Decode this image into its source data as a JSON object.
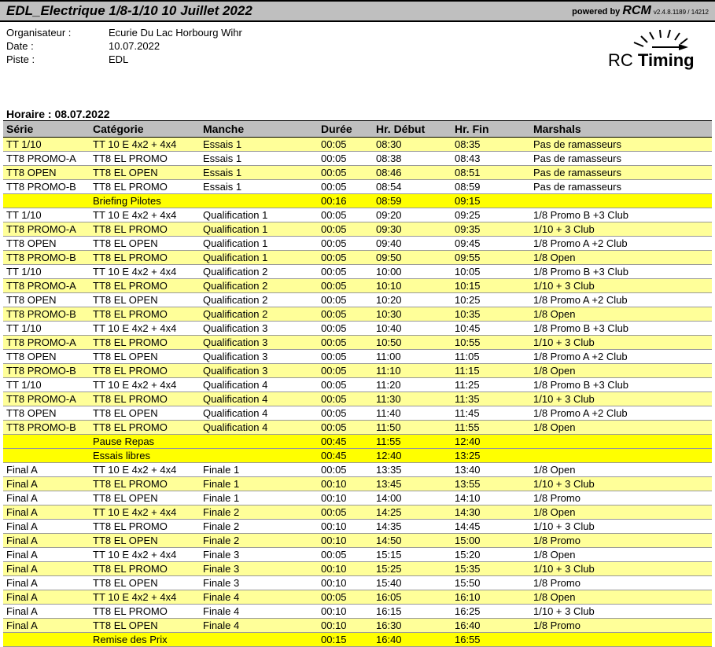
{
  "colors": {
    "header_bg": "#bfbfbf",
    "thead_bg": "#bfbfbf",
    "yellow_light": "#ffff99",
    "yellow_bright": "#ffff00",
    "white": "#ffffff",
    "text": "#000000"
  },
  "header": {
    "title": "EDL_Electrique 1/8-1/10 10 Juillet 2022",
    "powered_prefix": "powered by",
    "powered_brand": "RCM",
    "version": "v2.4.8.1189 / 14212"
  },
  "info": {
    "organiser_label": "Organisateur :",
    "organiser_value": "Ecurie Du Lac Horbourg Wihr",
    "date_label": "Date :",
    "date_value": "10.07.2022",
    "track_label": "Piste :",
    "track_value": "EDL"
  },
  "logo": {
    "text_rc": "RC",
    "text_timing": "Timing"
  },
  "schedule": {
    "heading": "Horaire : 08.07.2022",
    "columns": {
      "serie": "Série",
      "categorie": "Catégorie",
      "manche": "Manche",
      "duree": "Durée",
      "debut": "Hr. Début",
      "fin": "Hr. Fin",
      "marshals": "Marshals"
    },
    "rows": [
      {
        "style": "light",
        "serie": "TT 1/10",
        "cat": "TT 10 E 4x2 + 4x4",
        "manche": "Essais 1",
        "duree": "00:05",
        "debut": "08:30",
        "fin": "08:35",
        "marshal": "Pas de ramasseurs"
      },
      {
        "style": "white",
        "serie": "TT8 PROMO-A",
        "cat": "TT8 EL PROMO",
        "manche": "Essais 1",
        "duree": "00:05",
        "debut": "08:38",
        "fin": "08:43",
        "marshal": "Pas de ramasseurs"
      },
      {
        "style": "light",
        "serie": "TT8 OPEN",
        "cat": "TT8 EL OPEN",
        "manche": "Essais 1",
        "duree": "00:05",
        "debut": "08:46",
        "fin": "08:51",
        "marshal": "Pas de ramasseurs"
      },
      {
        "style": "white",
        "serie": "TT8 PROMO-B",
        "cat": "TT8 EL PROMO",
        "manche": "Essais 1",
        "duree": "00:05",
        "debut": "08:54",
        "fin": "08:59",
        "marshal": "Pas de ramasseurs"
      },
      {
        "style": "bright",
        "serie": "",
        "cat": "Briefing Pilotes",
        "manche": "",
        "duree": "00:16",
        "debut": "08:59",
        "fin": "09:15",
        "marshal": ""
      },
      {
        "style": "white",
        "serie": "TT 1/10",
        "cat": "TT 10 E 4x2 + 4x4",
        "manche": "Qualification 1",
        "duree": "00:05",
        "debut": "09:20",
        "fin": "09:25",
        "marshal": "1/8 Promo B +3 Club"
      },
      {
        "style": "light",
        "serie": "TT8 PROMO-A",
        "cat": "TT8 EL PROMO",
        "manche": "Qualification 1",
        "duree": "00:05",
        "debut": "09:30",
        "fin": "09:35",
        "marshal": "1/10 + 3 Club"
      },
      {
        "style": "white",
        "serie": "TT8 OPEN",
        "cat": "TT8 EL OPEN",
        "manche": "Qualification 1",
        "duree": "00:05",
        "debut": "09:40",
        "fin": "09:45",
        "marshal": "1/8 Promo A +2 Club"
      },
      {
        "style": "light",
        "serie": "TT8 PROMO-B",
        "cat": "TT8 EL PROMO",
        "manche": "Qualification 1",
        "duree": "00:05",
        "debut": "09:50",
        "fin": "09:55",
        "marshal": "1/8 Open"
      },
      {
        "style": "white",
        "serie": "TT 1/10",
        "cat": "TT 10 E 4x2 + 4x4",
        "manche": "Qualification 2",
        "duree": "00:05",
        "debut": "10:00",
        "fin": "10:05",
        "marshal": "1/8 Promo B +3 Club"
      },
      {
        "style": "light",
        "serie": "TT8 PROMO-A",
        "cat": "TT8 EL PROMO",
        "manche": "Qualification 2",
        "duree": "00:05",
        "debut": "10:10",
        "fin": "10:15",
        "marshal": "1/10 + 3 Club"
      },
      {
        "style": "white",
        "serie": "TT8 OPEN",
        "cat": "TT8 EL OPEN",
        "manche": "Qualification 2",
        "duree": "00:05",
        "debut": "10:20",
        "fin": "10:25",
        "marshal": "1/8 Promo A +2 Club"
      },
      {
        "style": "light",
        "serie": "TT8 PROMO-B",
        "cat": "TT8 EL PROMO",
        "manche": "Qualification 2",
        "duree": "00:05",
        "debut": "10:30",
        "fin": "10:35",
        "marshal": "1/8 Open"
      },
      {
        "style": "white",
        "serie": "TT 1/10",
        "cat": "TT 10 E 4x2 + 4x4",
        "manche": "Qualification 3",
        "duree": "00:05",
        "debut": "10:40",
        "fin": "10:45",
        "marshal": "1/8 Promo B +3 Club"
      },
      {
        "style": "light",
        "serie": "TT8 PROMO-A",
        "cat": "TT8 EL PROMO",
        "manche": "Qualification 3",
        "duree": "00:05",
        "debut": "10:50",
        "fin": "10:55",
        "marshal": "1/10 + 3 Club"
      },
      {
        "style": "white",
        "serie": "TT8 OPEN",
        "cat": "TT8 EL OPEN",
        "manche": "Qualification 3",
        "duree": "00:05",
        "debut": "11:00",
        "fin": "11:05",
        "marshal": "1/8 Promo A +2 Club"
      },
      {
        "style": "light",
        "serie": "TT8 PROMO-B",
        "cat": "TT8 EL PROMO",
        "manche": "Qualification 3",
        "duree": "00:05",
        "debut": "11:10",
        "fin": "11:15",
        "marshal": "1/8 Open"
      },
      {
        "style": "white",
        "serie": "TT 1/10",
        "cat": "TT 10 E 4x2 + 4x4",
        "manche": "Qualification 4",
        "duree": "00:05",
        "debut": "11:20",
        "fin": "11:25",
        "marshal": "1/8 Promo B +3 Club"
      },
      {
        "style": "light",
        "serie": "TT8 PROMO-A",
        "cat": "TT8 EL PROMO",
        "manche": "Qualification 4",
        "duree": "00:05",
        "debut": "11:30",
        "fin": "11:35",
        "marshal": "1/10 + 3 Club"
      },
      {
        "style": "white",
        "serie": "TT8 OPEN",
        "cat": "TT8 EL OPEN",
        "manche": "Qualification 4",
        "duree": "00:05",
        "debut": "11:40",
        "fin": "11:45",
        "marshal": "1/8 Promo A +2 Club"
      },
      {
        "style": "light",
        "serie": "TT8 PROMO-B",
        "cat": "TT8 EL PROMO",
        "manche": "Qualification 4",
        "duree": "00:05",
        "debut": "11:50",
        "fin": "11:55",
        "marshal": "1/8 Open"
      },
      {
        "style": "bright",
        "serie": "",
        "cat": "Pause Repas",
        "manche": "",
        "duree": "00:45",
        "debut": "11:55",
        "fin": "12:40",
        "marshal": ""
      },
      {
        "style": "bright",
        "serie": "",
        "cat": "Essais libres",
        "manche": "",
        "duree": "00:45",
        "debut": "12:40",
        "fin": "13:25",
        "marshal": ""
      },
      {
        "style": "white",
        "serie": "Final A",
        "cat": "TT 10 E 4x2 + 4x4",
        "manche": "Finale 1",
        "duree": "00:05",
        "debut": "13:35",
        "fin": "13:40",
        "marshal": "1/8 Open"
      },
      {
        "style": "light",
        "serie": "Final A",
        "cat": "TT8 EL PROMO",
        "manche": "Finale 1",
        "duree": "00:10",
        "debut": "13:45",
        "fin": "13:55",
        "marshal": "1/10 + 3 Club"
      },
      {
        "style": "white",
        "serie": "Final A",
        "cat": "TT8 EL OPEN",
        "manche": "Finale 1",
        "duree": "00:10",
        "debut": "14:00",
        "fin": "14:10",
        "marshal": "1/8 Promo"
      },
      {
        "style": "light",
        "serie": "Final A",
        "cat": "TT 10 E 4x2 + 4x4",
        "manche": "Finale 2",
        "duree": "00:05",
        "debut": "14:25",
        "fin": "14:30",
        "marshal": "1/8 Open"
      },
      {
        "style": "white",
        "serie": "Final A",
        "cat": "TT8 EL PROMO",
        "manche": "Finale 2",
        "duree": "00:10",
        "debut": "14:35",
        "fin": "14:45",
        "marshal": "1/10 + 3 Club"
      },
      {
        "style": "light",
        "serie": "Final A",
        "cat": "TT8 EL OPEN",
        "manche": "Finale 2",
        "duree": "00:10",
        "debut": "14:50",
        "fin": "15:00",
        "marshal": "1/8 Promo"
      },
      {
        "style": "white",
        "serie": "Final A",
        "cat": "TT 10 E 4x2 + 4x4",
        "manche": "Finale 3",
        "duree": "00:05",
        "debut": "15:15",
        "fin": "15:20",
        "marshal": "1/8 Open"
      },
      {
        "style": "light",
        "serie": "Final A",
        "cat": "TT8 EL PROMO",
        "manche": "Finale 3",
        "duree": "00:10",
        "debut": "15:25",
        "fin": "15:35",
        "marshal": "1/10 + 3 Club"
      },
      {
        "style": "white",
        "serie": "Final A",
        "cat": "TT8 EL OPEN",
        "manche": "Finale 3",
        "duree": "00:10",
        "debut": "15:40",
        "fin": "15:50",
        "marshal": "1/8 Promo"
      },
      {
        "style": "light",
        "serie": "Final A",
        "cat": "TT 10 E 4x2 + 4x4",
        "manche": "Finale 4",
        "duree": "00:05",
        "debut": "16:05",
        "fin": "16:10",
        "marshal": "1/8 Open"
      },
      {
        "style": "white",
        "serie": "Final A",
        "cat": "TT8 EL PROMO",
        "manche": "Finale 4",
        "duree": "00:10",
        "debut": "16:15",
        "fin": "16:25",
        "marshal": "1/10 + 3 Club"
      },
      {
        "style": "light",
        "serie": "Final A",
        "cat": "TT8 EL OPEN",
        "manche": "Finale 4",
        "duree": "00:10",
        "debut": "16:30",
        "fin": "16:40",
        "marshal": "1/8 Promo"
      },
      {
        "style": "bright",
        "serie": "",
        "cat": "Remise des Prix",
        "manche": "",
        "duree": "00:15",
        "debut": "16:40",
        "fin": "16:55",
        "marshal": ""
      }
    ]
  }
}
